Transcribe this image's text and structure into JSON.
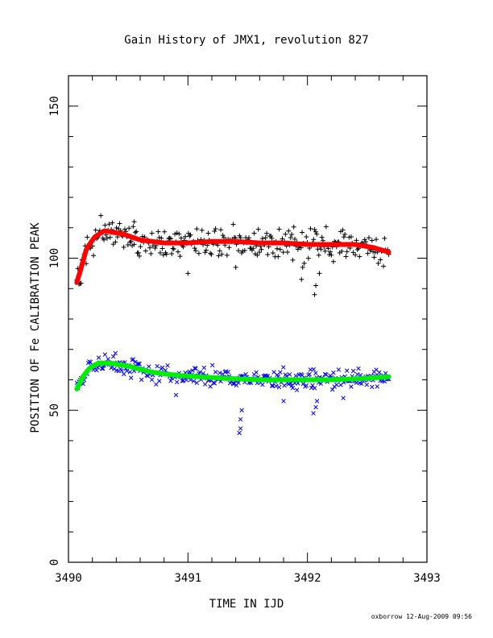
{
  "chart_data": {
    "type": "scatter",
    "title": "Gain History of JMX1, revolution 827",
    "xlabel": "TIME IN IJD",
    "ylabel": "POSITION OF Fe CALIBRATION PEAK",
    "footer": "oxborrow 12-Aug-2009 09:56",
    "xlim": [
      3490,
      3493
    ],
    "ylim": [
      0,
      160
    ],
    "x_ticks": [
      "3490",
      "3491",
      "3492",
      "3493"
    ],
    "y_ticks": [
      "0",
      "50",
      "100",
      "150"
    ],
    "series": [
      {
        "marker": "+",
        "color": "#000000",
        "band": 3,
        "trend_x": [
          3490.07,
          3490.1,
          3490.15,
          3490.22,
          3490.3,
          3490.45,
          3490.6,
          3490.8,
          3491.0,
          3491.2,
          3491.4,
          3491.6,
          3491.8,
          3492.0,
          3492.2,
          3492.4,
          3492.55,
          3492.68
        ],
        "trend_y": [
          92,
          96,
          103,
          107,
          109,
          108,
          106,
          105,
          105,
          105.5,
          105.5,
          105,
          105,
          104.5,
          104.5,
          104.5,
          103.5,
          102
        ],
        "outliers": [
          [
            3491.0,
            95
          ],
          [
            3491.95,
            93
          ],
          [
            3491.96,
            97
          ],
          [
            3492.06,
            88
          ],
          [
            3492.07,
            91
          ],
          [
            3490.55,
            112
          ],
          [
            3492.1,
            95
          ],
          [
            3491.4,
            97
          ]
        ]
      },
      {
        "marker": "x",
        "color": "#0000ff",
        "band": 2,
        "trend_x": [
          3490.07,
          3490.12,
          3490.18,
          3490.25,
          3490.35,
          3490.5,
          3490.7,
          3490.9,
          3491.1,
          3491.3,
          3491.6,
          3491.9,
          3492.2,
          3492.5,
          3492.68
        ],
        "trend_y": [
          57,
          61,
          64,
          65.5,
          65.5,
          64.5,
          62.5,
          61.5,
          61,
          60.5,
          60,
          60,
          60,
          60.5,
          61
        ],
        "outliers": [
          [
            3491.43,
            42.5
          ],
          [
            3491.44,
            44
          ],
          [
            3491.44,
            47
          ],
          [
            3491.45,
            50
          ],
          [
            3492.05,
            49
          ],
          [
            3492.07,
            51
          ],
          [
            3492.08,
            53
          ],
          [
            3491.8,
            53
          ],
          [
            3490.9,
            55
          ],
          [
            3492.3,
            54
          ]
        ]
      }
    ],
    "fits": [
      {
        "color": "#ff0000",
        "x": [
          3490.07,
          3490.1,
          3490.15,
          3490.22,
          3490.3,
          3490.45,
          3490.6,
          3490.8,
          3491.0,
          3491.2,
          3491.4,
          3491.6,
          3491.8,
          3492.0,
          3492.2,
          3492.4,
          3492.55,
          3492.68
        ],
        "y": [
          92,
          96,
          103,
          107,
          109,
          108,
          106,
          105,
          105,
          105.5,
          105.5,
          105,
          105,
          104.5,
          104.5,
          104.5,
          103.5,
          102
        ]
      },
      {
        "color": "#00ee00",
        "x": [
          3490.07,
          3490.12,
          3490.18,
          3490.25,
          3490.35,
          3490.5,
          3490.7,
          3490.9,
          3491.1,
          3491.3,
          3491.6,
          3491.9,
          3492.2,
          3492.5,
          3492.68
        ],
        "y": [
          57,
          61,
          64,
          65.5,
          65.5,
          64.5,
          62.5,
          61.5,
          61,
          60.5,
          60,
          60,
          60,
          60.5,
          61
        ]
      }
    ]
  }
}
